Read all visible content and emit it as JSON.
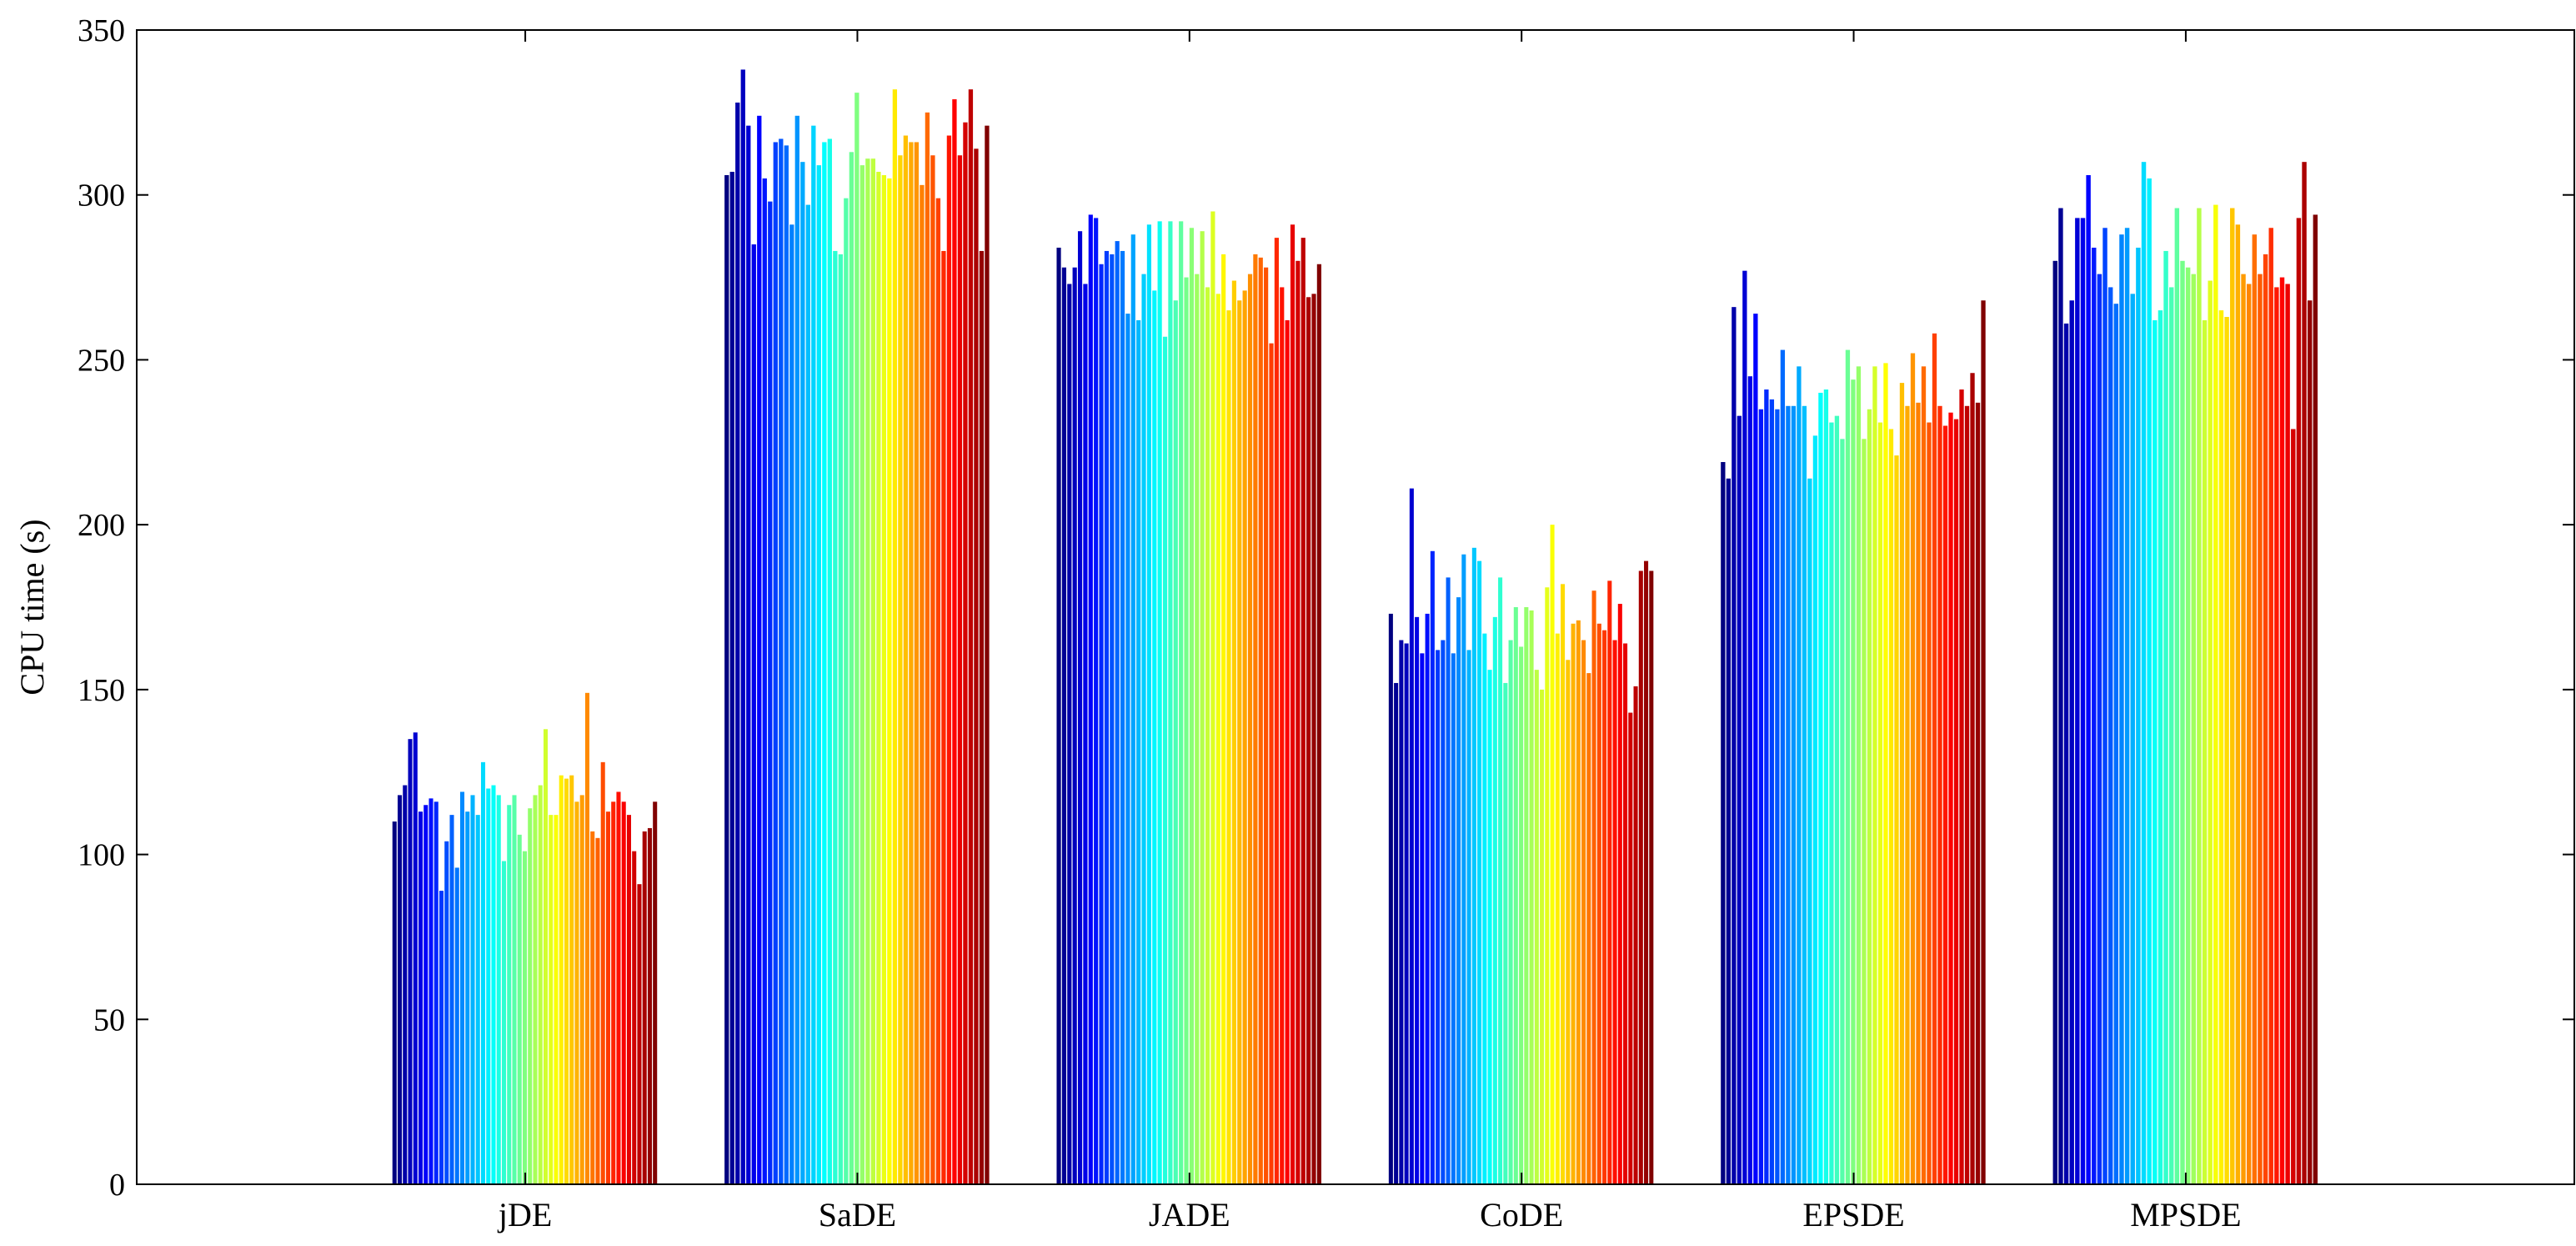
{
  "chart_data": {
    "type": "bar",
    "title": "",
    "xlabel": "",
    "ylabel": "CPU time (s)",
    "ylim": [
      0,
      350
    ],
    "yticks": [
      0,
      50,
      100,
      150,
      200,
      250,
      300,
      350
    ],
    "grid": false,
    "legend": "none",
    "colormap": "jet",
    "categories": [
      "jDE",
      "SaDE",
      "JADE",
      "CoDE",
      "EPSDE",
      "MPSDE"
    ],
    "groups": [
      {
        "category": "jDE",
        "values": [
          110,
          118,
          121,
          135,
          137,
          113,
          115,
          117,
          116,
          89,
          104,
          112,
          96,
          119,
          113,
          118,
          112,
          128,
          120,
          121,
          118,
          98,
          115,
          118,
          106,
          101,
          114,
          118,
          121,
          138,
          112,
          112,
          124,
          123,
          124,
          116,
          118,
          149,
          107,
          105,
          128,
          113,
          116,
          119,
          116,
          112,
          101,
          91,
          107,
          108,
          116
        ]
      },
      {
        "category": "SaDE",
        "values": [
          306,
          307,
          328,
          338,
          321,
          285,
          324,
          305,
          298,
          316,
          317,
          315,
          291,
          324,
          310,
          297,
          321,
          309,
          316,
          317,
          283,
          282,
          299,
          313,
          331,
          309,
          311,
          311,
          307,
          306,
          305,
          332,
          312,
          318,
          316,
          316,
          303,
          325,
          312,
          299,
          283,
          318,
          329,
          312,
          322,
          332,
          314,
          283,
          321
        ]
      },
      {
        "category": "JADE",
        "values": [
          284,
          278,
          273,
          278,
          289,
          273,
          294,
          293,
          279,
          283,
          282,
          286,
          283,
          264,
          288,
          262,
          276,
          291,
          271,
          292,
          257,
          292,
          268,
          292,
          275,
          290,
          276,
          289,
          272,
          295,
          270,
          282,
          265,
          274,
          268,
          271,
          276,
          282,
          281,
          278,
          255,
          287,
          272,
          262,
          291,
          280,
          287,
          269,
          270,
          279
        ]
      },
      {
        "category": "CoDE",
        "values": [
          173,
          152,
          165,
          164,
          211,
          172,
          161,
          173,
          192,
          162,
          165,
          184,
          161,
          178,
          191,
          162,
          193,
          189,
          167,
          156,
          172,
          184,
          152,
          165,
          175,
          163,
          175,
          174,
          156,
          150,
          181,
          200,
          167,
          182,
          159,
          170,
          171,
          165,
          155,
          180,
          170,
          168,
          183,
          165,
          176,
          164,
          143,
          151,
          186,
          189,
          186
        ]
      },
      {
        "category": "EPSDE",
        "values": [
          219,
          214,
          266,
          233,
          277,
          245,
          264,
          235,
          241,
          238,
          235,
          253,
          236,
          236,
          248,
          236,
          214,
          227,
          240,
          241,
          231,
          233,
          226,
          253,
          244,
          248,
          226,
          235,
          248,
          231,
          249,
          229,
          221,
          243,
          236,
          252,
          237,
          248,
          231,
          258,
          236,
          230,
          234,
          232,
          241,
          236,
          246,
          237,
          268
        ]
      },
      {
        "category": "MPSDE",
        "values": [
          280,
          296,
          261,
          268,
          293,
          293,
          306,
          284,
          276,
          290,
          272,
          267,
          288,
          290,
          270,
          284,
          310,
          305,
          262,
          265,
          283,
          272,
          296,
          280,
          278,
          276,
          296,
          262,
          274,
          297,
          265,
          263,
          296,
          291,
          276,
          273,
          288,
          276,
          282,
          290,
          272,
          275,
          273,
          229,
          293,
          310,
          268,
          294
        ]
      }
    ]
  }
}
